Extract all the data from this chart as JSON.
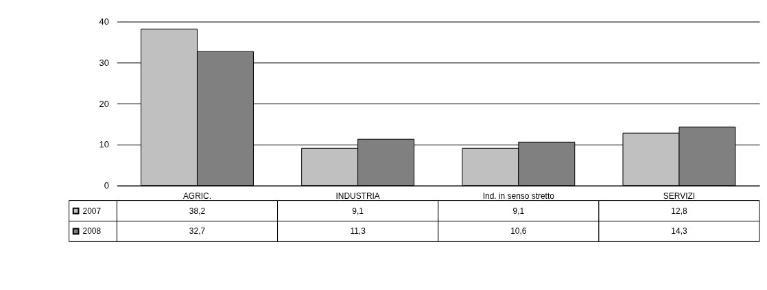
{
  "chart_data": {
    "type": "bar",
    "categories": [
      "AGRIC.",
      "INDUSTRIA",
      "Ind. in senso stretto",
      "SERVIZI"
    ],
    "series": [
      {
        "name": "2007",
        "color": "#c0c0c0",
        "values": [
          38.2,
          9.1,
          9.1,
          12.8
        ],
        "value_labels": [
          "38,2",
          "9,1",
          "9,1",
          "12,8"
        ]
      },
      {
        "name": "2008",
        "color": "#808080",
        "values": [
          32.7,
          11.3,
          10.6,
          14.3
        ],
        "value_labels": [
          "32,7",
          "11,3",
          "10,6",
          "14,3"
        ]
      }
    ],
    "ylim": [
      0,
      40
    ],
    "yticks": [
      0,
      10,
      20,
      30,
      40
    ],
    "grid": "y",
    "legend": "bottom left"
  }
}
